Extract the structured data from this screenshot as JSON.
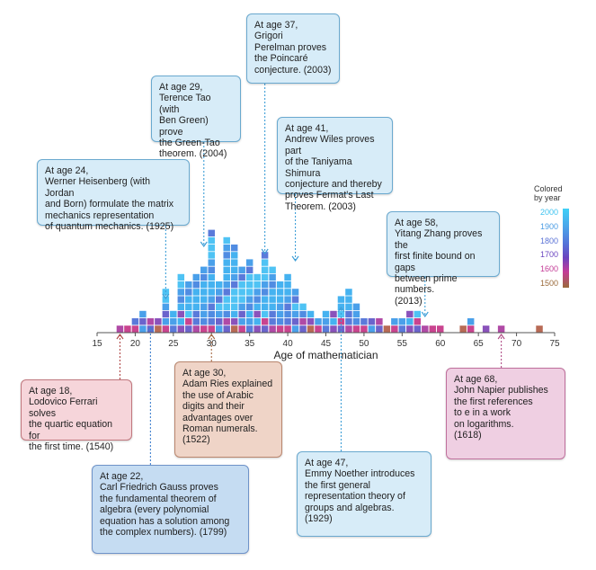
{
  "chart_data": {
    "type": "histogram",
    "xlabel": "Age of mathematician",
    "xlim": [
      15,
      75
    ],
    "xticks": [
      15,
      20,
      25,
      30,
      35,
      40,
      45,
      50,
      55,
      60,
      65,
      70,
      75
    ],
    "bin_width": 1,
    "counts": [
      {
        "age": 18,
        "count": 1
      },
      {
        "age": 19,
        "count": 1
      },
      {
        "age": 20,
        "count": 2
      },
      {
        "age": 21,
        "count": 3
      },
      {
        "age": 22,
        "count": 2
      },
      {
        "age": 23,
        "count": 2
      },
      {
        "age": 24,
        "count": 6
      },
      {
        "age": 25,
        "count": 3
      },
      {
        "age": 26,
        "count": 8
      },
      {
        "age": 27,
        "count": 7
      },
      {
        "age": 28,
        "count": 8
      },
      {
        "age": 29,
        "count": 9
      },
      {
        "age": 30,
        "count": 14
      },
      {
        "age": 31,
        "count": 7
      },
      {
        "age": 32,
        "count": 13
      },
      {
        "age": 33,
        "count": 12
      },
      {
        "age": 34,
        "count": 9
      },
      {
        "age": 35,
        "count": 10
      },
      {
        "age": 36,
        "count": 8
      },
      {
        "age": 37,
        "count": 11
      },
      {
        "age": 38,
        "count": 9
      },
      {
        "age": 39,
        "count": 7
      },
      {
        "age": 40,
        "count": 8
      },
      {
        "age": 41,
        "count": 6
      },
      {
        "age": 42,
        "count": 4
      },
      {
        "age": 43,
        "count": 3
      },
      {
        "age": 44,
        "count": 2
      },
      {
        "age": 45,
        "count": 3
      },
      {
        "age": 46,
        "count": 3
      },
      {
        "age": 47,
        "count": 5
      },
      {
        "age": 48,
        "count": 6
      },
      {
        "age": 49,
        "count": 4
      },
      {
        "age": 50,
        "count": 2
      },
      {
        "age": 51,
        "count": 2
      },
      {
        "age": 52,
        "count": 2
      },
      {
        "age": 53,
        "count": 1
      },
      {
        "age": 54,
        "count": 2
      },
      {
        "age": 55,
        "count": 2
      },
      {
        "age": 56,
        "count": 3
      },
      {
        "age": 57,
        "count": 3
      },
      {
        "age": 58,
        "count": 1
      },
      {
        "age": 59,
        "count": 1
      },
      {
        "age": 60,
        "count": 1
      },
      {
        "age": 63,
        "count": 1
      },
      {
        "age": 64,
        "count": 2
      },
      {
        "age": 66,
        "count": 1
      },
      {
        "age": 68,
        "count": 1
      },
      {
        "age": 73,
        "count": 1
      }
    ],
    "colorbar": {
      "title": "Colored by year",
      "ticks": [
        "2000",
        "1900",
        "1800",
        "1700",
        "1600",
        "1500"
      ],
      "colors": [
        "#43c6f4",
        "#4a9be6",
        "#5672d8",
        "#6a47c0",
        "#c0409a",
        "#9a6a3a"
      ]
    }
  },
  "annotations": [
    {
      "id": "perelman",
      "age_label": "At age 37,",
      "lines": [
        "Grigori",
        "Perelman proves",
        "the Poincaré",
        "conjecture. (2003)"
      ],
      "style": "blue",
      "age": 37
    },
    {
      "id": "tao",
      "age_label": "At age 29,",
      "lines": [
        "Terence Tao (with",
        "Ben Green) prove",
        "the Green-Tao",
        "theorem. (2004)"
      ],
      "style": "blue",
      "age": 29
    },
    {
      "id": "wiles",
      "age_label": "At age 41,",
      "lines": [
        "Andrew Wiles proves part",
        "of the Taniyama Shimura",
        "conjecture and thereby",
        "proves Fermat's Last",
        "Theorem. (2003)"
      ],
      "style": "blue",
      "age": 41
    },
    {
      "id": "heisenberg",
      "age_label": "At age 24,",
      "lines": [
        "Werner Heisenberg (with Jordan",
        "and Born) formulate the matrix",
        "mechanics representation",
        "of quantum mechanics.  (1925)"
      ],
      "style": "blue",
      "age": 24
    },
    {
      "id": "zhang",
      "age_label": "At age 58,",
      "lines": [
        "Yitang Zhang proves the",
        "first finite bound on gaps",
        "between prime numbers.",
        "(2013)"
      ],
      "style": "blue",
      "age": 58
    },
    {
      "id": "ferrari",
      "age_label": "At age 18,",
      "lines": [
        "Lodovico Ferrari solves",
        "the quartic equation for",
        "the first time. (1540)"
      ],
      "style": "pink",
      "age": 18
    },
    {
      "id": "ries",
      "age_label": "At age 30,",
      "lines": [
        "Adam Ries explained",
        "the use of Arabic",
        "digits and their",
        "advantages over",
        "Roman numerals.",
        "(1522)"
      ],
      "style": "tan",
      "age": 30
    },
    {
      "id": "napier",
      "age_label": "At age 68,",
      "lines": [
        "John Napier publishes",
        "the first references",
        "to e in a work",
        "on logarithms.",
        "(1618)"
      ],
      "style": "mauve",
      "age": 68
    },
    {
      "id": "gauss",
      "age_label": "At age 22,",
      "lines": [
        "Carl Friedrich Gauss proves",
        "the fundamental theorem of",
        "algebra (every polynomial",
        "equation has a solution among",
        "the complex numbers). (1799)"
      ],
      "style": "blue-dark",
      "age": 22
    },
    {
      "id": "noether",
      "age_label": "At age 47,",
      "lines": [
        "Emmy Noether introduces",
        "the first general",
        "representation theory of",
        "groups and algebras.",
        "(1929)"
      ],
      "style": "blue",
      "age": 47
    }
  ]
}
